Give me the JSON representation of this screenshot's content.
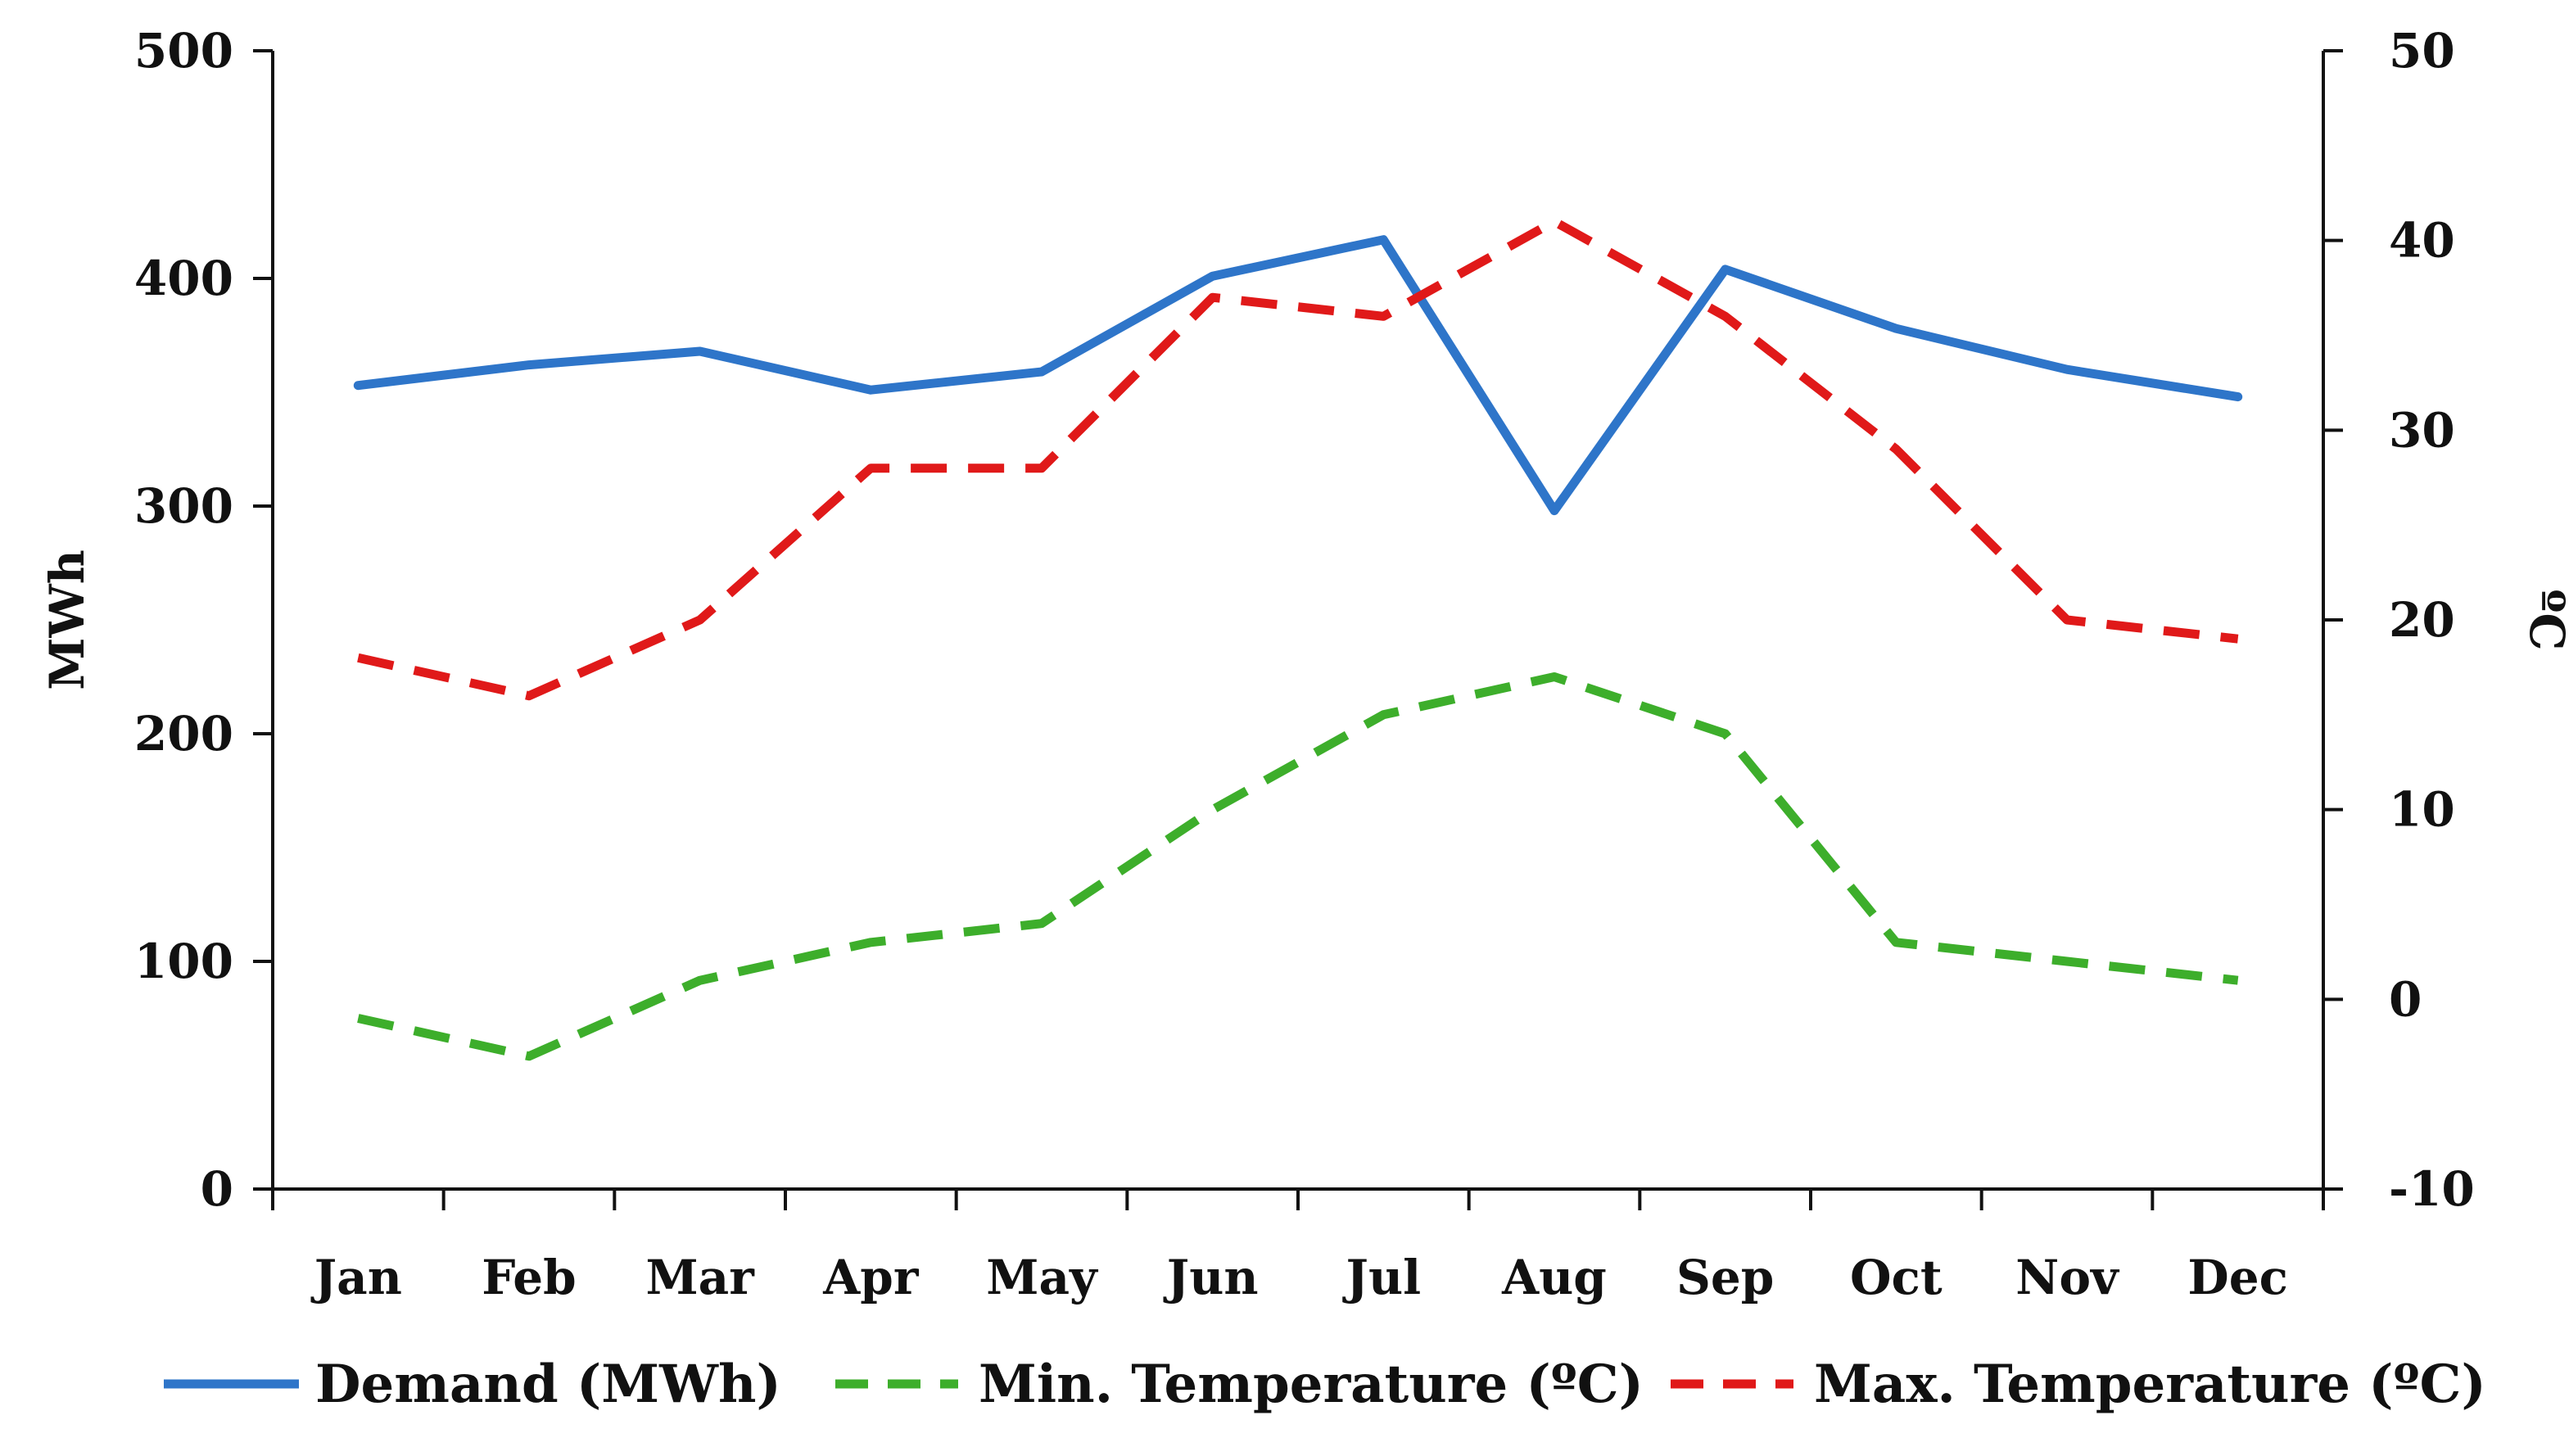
{
  "colors": {
    "demand": "#2E75C9",
    "min_temp": "#3DAE2B",
    "max_temp": "#E01919",
    "axis": "#111111"
  },
  "chart_data": {
    "type": "line",
    "title": "",
    "categories": [
      "Jan",
      "Feb",
      "Mar",
      "Apr",
      "May",
      "Jun",
      "Jul",
      "Aug",
      "Sep",
      "Oct",
      "Nov",
      "Dec"
    ],
    "left_axis": {
      "label": "MWh",
      "ylim": [
        0,
        500
      ],
      "ticks": [
        0,
        100,
        200,
        300,
        400,
        500
      ],
      "tick_labels": [
        "0",
        "100",
        "200",
        "300",
        "400",
        "500"
      ]
    },
    "right_axis": {
      "label": "ºC",
      "ylim": [
        -10,
        50
      ],
      "ticks": [
        -10,
        0,
        10,
        20,
        30,
        40,
        50
      ],
      "tick_labels": [
        "-10",
        "0",
        "10",
        "20",
        "30",
        "40",
        "50"
      ]
    },
    "series": [
      {
        "key": "demand",
        "name": "Demand (MWh)",
        "axis": "left",
        "style": "solid",
        "values": [
          353,
          362,
          368,
          351,
          359,
          401,
          417,
          298,
          404,
          378,
          360,
          348
        ]
      },
      {
        "key": "min_temp",
        "name": "Min. Temperature (ºC)",
        "axis": "right",
        "style": "dashed",
        "values": [
          -1,
          -3,
          1,
          3,
          4,
          10,
          15,
          17,
          14,
          3,
          2,
          1
        ]
      },
      {
        "key": "max_temp",
        "name": "Max. Temperature (ºC)",
        "axis": "right",
        "style": "dashed",
        "values": [
          18,
          16,
          20,
          28,
          28,
          37,
          36,
          41,
          36,
          29,
          20,
          19
        ]
      }
    ],
    "legend": {
      "position": "bottom"
    },
    "grid": false
  }
}
